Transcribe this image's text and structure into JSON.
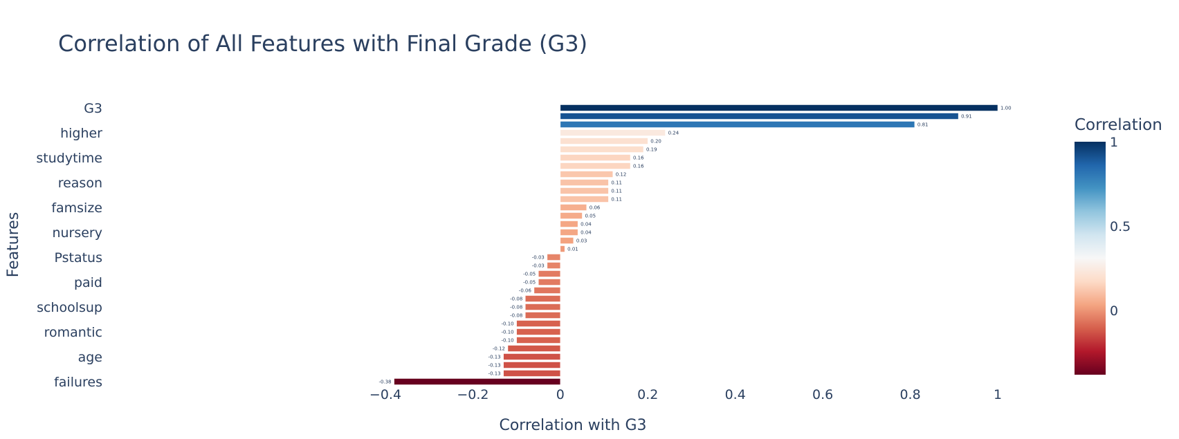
{
  "chart_data": {
    "type": "bar",
    "orientation": "horizontal",
    "title": "Correlation of All Features with Final Grade (G3)",
    "xlabel": "Correlation with G3",
    "ylabel": "Features",
    "xlim": [
      -0.4,
      1.0
    ],
    "x_ticks": [
      "−0.4",
      "−0.2",
      "0",
      "0.2",
      "0.4",
      "0.6",
      "0.8",
      "1"
    ],
    "y_tick_labels": [
      "G3",
      "higher",
      "studytime",
      "reason",
      "famsize",
      "nursery",
      "Pstatus",
      "paid",
      "schoolsup",
      "romantic",
      "age",
      "failures"
    ],
    "colorbar": {
      "title": "Correlation",
      "ticks": [
        "1",
        "0.5",
        "0"
      ],
      "colorscale": "RdBu"
    },
    "bars": [
      {
        "category": "G3",
        "value": 1.0,
        "label": "1.00"
      },
      {
        "category": "",
        "value": 0.91,
        "label": "0.91"
      },
      {
        "category": "",
        "value": 0.81,
        "label": "0.81"
      },
      {
        "category": "higher",
        "value": 0.24,
        "label": "0.24"
      },
      {
        "category": "",
        "value": 0.2,
        "label": "0.20"
      },
      {
        "category": "",
        "value": 0.19,
        "label": "0.19"
      },
      {
        "category": "studytime",
        "value": 0.16,
        "label": "0.16"
      },
      {
        "category": "",
        "value": 0.16,
        "label": "0.16"
      },
      {
        "category": "",
        "value": 0.12,
        "label": "0.12"
      },
      {
        "category": "reason",
        "value": 0.11,
        "label": "0.11"
      },
      {
        "category": "",
        "value": 0.11,
        "label": "0.11"
      },
      {
        "category": "",
        "value": 0.11,
        "label": "0.11"
      },
      {
        "category": "famsize",
        "value": 0.06,
        "label": "0.06"
      },
      {
        "category": "",
        "value": 0.05,
        "label": "0.05"
      },
      {
        "category": "",
        "value": 0.04,
        "label": "0.04"
      },
      {
        "category": "nursery",
        "value": 0.04,
        "label": "0.04"
      },
      {
        "category": "",
        "value": 0.03,
        "label": "0.03"
      },
      {
        "category": "",
        "value": 0.01,
        "label": "0.01"
      },
      {
        "category": "Pstatus",
        "value": -0.03,
        "label": "-0.03"
      },
      {
        "category": "",
        "value": -0.03,
        "label": "-0.03"
      },
      {
        "category": "",
        "value": -0.05,
        "label": "-0.05"
      },
      {
        "category": "paid",
        "value": -0.05,
        "label": "-0.05"
      },
      {
        "category": "",
        "value": -0.06,
        "label": "-0.06"
      },
      {
        "category": "",
        "value": -0.08,
        "label": "-0.08"
      },
      {
        "category": "schoolsup",
        "value": -0.08,
        "label": "-0.08"
      },
      {
        "category": "",
        "value": -0.08,
        "label": "-0.08"
      },
      {
        "category": "",
        "value": -0.1,
        "label": "-0.10"
      },
      {
        "category": "romantic",
        "value": -0.1,
        "label": "-0.10"
      },
      {
        "category": "",
        "value": -0.1,
        "label": "-0.10"
      },
      {
        "category": "",
        "value": -0.12,
        "label": "-0.12"
      },
      {
        "category": "age",
        "value": -0.13,
        "label": "-0.13"
      },
      {
        "category": "",
        "value": -0.13,
        "label": "-0.13"
      },
      {
        "category": "",
        "value": -0.13,
        "label": "-0.13"
      },
      {
        "category": "failures",
        "value": -0.38,
        "label": "-0.38"
      }
    ]
  }
}
